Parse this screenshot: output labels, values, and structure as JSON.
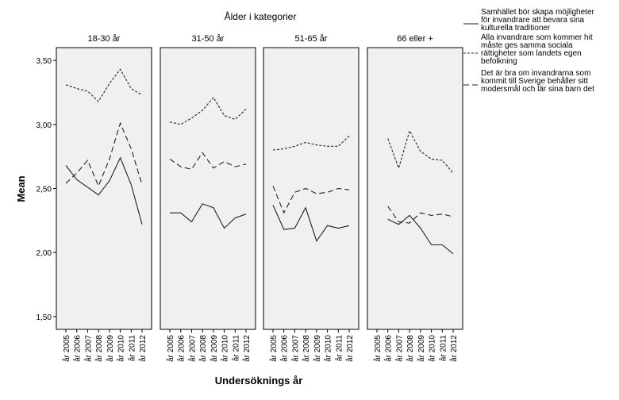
{
  "chart_data": {
    "type": "line",
    "title": "Ålder i kategorier",
    "xlabel": "Undersöknings år",
    "ylabel": "Mean",
    "ylim": [
      1.4,
      3.6
    ],
    "yticks": [
      "1,50",
      "2,00",
      "2,50",
      "3,00",
      "3,50"
    ],
    "ytick_values": [
      1.5,
      2.0,
      2.5,
      3.0,
      3.5
    ],
    "categories": [
      "år 2005",
      "år 2006",
      "år 2007",
      "år 2008",
      "år 2009",
      "år 2010",
      "år 2011",
      "år 2012"
    ],
    "legend_position": "top-right",
    "series_meta": [
      {
        "name": "Samhället bör skapa möjligheter för invandrare att bevara sina kulturella traditioner",
        "dash": "solid",
        "lines": [
          "Samhället bör skapa möjligheter",
          "för invandrare att bevara sina",
          "kulturella traditioner"
        ]
      },
      {
        "name": "Alla invandrare som kommer hit måste ges samma sociala rättigheter som landets egen befolkning",
        "dash": "dotted",
        "lines": [
          "Alla invandrare som kommer hit",
          "måste ges samma sociala",
          "rättigheter som landets egen",
          "befolkning"
        ]
      },
      {
        "name": "Det är bra om invandrarna som kommit till Sverige behåller sitt modersmål och lär sina barn det",
        "dash": "dashed",
        "lines": [
          "Det är bra om invandrarna som",
          "kommit till Sverige behåller sitt",
          "modersmål och lär sina barn det"
        ]
      }
    ],
    "panels": [
      {
        "title": "18-30 år",
        "series": [
          [
            2.68,
            2.57,
            2.51,
            2.45,
            2.56,
            2.74,
            2.53,
            2.22
          ],
          [
            3.31,
            3.28,
            3.26,
            3.18,
            3.32,
            3.43,
            3.28,
            3.23
          ],
          [
            2.54,
            2.62,
            2.72,
            2.52,
            2.73,
            3.01,
            2.81,
            2.53
          ]
        ]
      },
      {
        "title": "31-50 år",
        "series": [
          [
            2.31,
            2.31,
            2.24,
            2.38,
            2.35,
            2.19,
            2.27,
            2.3
          ],
          [
            3.02,
            3.0,
            3.05,
            3.11,
            3.21,
            3.07,
            3.04,
            3.12
          ],
          [
            2.73,
            2.67,
            2.65,
            2.78,
            2.66,
            2.71,
            2.67,
            2.69
          ]
        ]
      },
      {
        "title": "51-65 år",
        "series": [
          [
            2.37,
            2.18,
            2.19,
            2.35,
            2.09,
            2.21,
            2.19,
            2.21
          ],
          [
            2.8,
            2.81,
            2.83,
            2.86,
            2.84,
            2.83,
            2.83,
            2.91
          ],
          [
            2.52,
            2.31,
            2.47,
            2.5,
            2.46,
            2.47,
            2.5,
            2.49
          ]
        ]
      },
      {
        "title": "66 eller +",
        "series": [
          [
            null,
            2.26,
            2.22,
            2.29,
            2.19,
            2.06,
            2.06,
            1.99
          ],
          [
            null,
            2.89,
            2.66,
            2.95,
            2.79,
            2.73,
            2.72,
            2.62
          ],
          [
            null,
            2.36,
            2.24,
            2.23,
            2.31,
            2.29,
            2.3,
            2.28
          ]
        ]
      }
    ]
  }
}
